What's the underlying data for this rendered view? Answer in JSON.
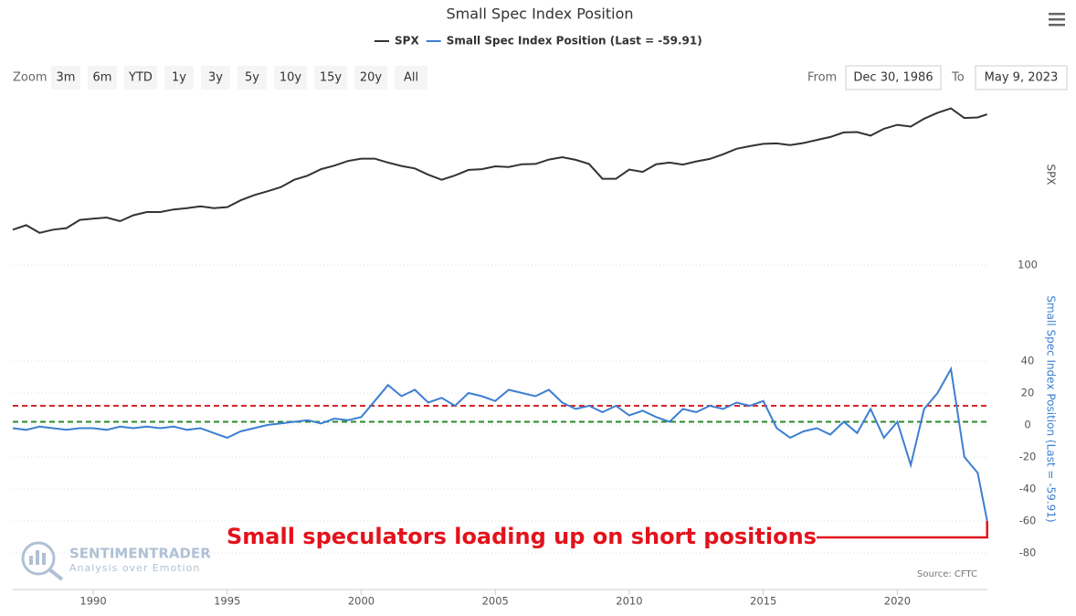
{
  "title": "Small Spec Index Position",
  "ui": {
    "zoom_label": "Zoom",
    "zoom_buttons": [
      "3m",
      "6m",
      "YTD",
      "1y",
      "3y",
      "5y",
      "10y",
      "15y",
      "20y",
      "All"
    ],
    "from_label": "From",
    "from": "Dec 30, 1986",
    "to_label": "To",
    "to": "May 9, 2023"
  },
  "branding": {
    "name": "SENTIMENTRADER",
    "tagline": "Analysis over Emotion"
  },
  "source": "Source: CFTC",
  "chart_data": [
    {
      "type": "line",
      "log_scale": true,
      "ylabel": "SPX",
      "xlim": [
        1987,
        2023.36
      ],
      "ylim": [
        180,
        5500
      ],
      "x": [
        1987,
        1987.5,
        1988,
        1988.5,
        1989,
        1989.5,
        1990,
        1990.5,
        1991,
        1991.5,
        1992,
        1992.5,
        1993,
        1993.5,
        1994,
        1994.5,
        1995,
        1995.5,
        1996,
        1996.5,
        1997,
        1997.5,
        1998,
        1998.5,
        1999,
        1999.5,
        2000,
        2000.5,
        2001,
        2001.5,
        2002,
        2002.5,
        2003,
        2003.5,
        2004,
        2004.5,
        2005,
        2005.5,
        2006,
        2006.5,
        2007,
        2007.5,
        2008,
        2008.5,
        2009,
        2009.5,
        2010,
        2010.5,
        2011,
        2011.5,
        2012,
        2012.5,
        2013,
        2013.5,
        2014,
        2014.5,
        2015,
        2015.5,
        2016,
        2016.5,
        2017,
        2017.5,
        2018,
        2018.5,
        2019,
        2019.5,
        2020,
        2020.5,
        2021,
        2021.5,
        2022,
        2022.5,
        2023,
        2023.35
      ],
      "series": [
        {
          "name": "SPX",
          "color": "#333333",
          "values": [
            270,
            300,
            250,
            270,
            280,
            340,
            350,
            360,
            330,
            380,
            410,
            410,
            435,
            450,
            470,
            450,
            460,
            540,
            610,
            670,
            740,
            880,
            970,
            1130,
            1230,
            1370,
            1450,
            1450,
            1320,
            1220,
            1150,
            990,
            880,
            975,
            1110,
            1130,
            1210,
            1190,
            1270,
            1280,
            1420,
            1500,
            1410,
            1280,
            900,
            900,
            1120,
            1060,
            1270,
            1320,
            1260,
            1360,
            1440,
            1610,
            1830,
            1950,
            2060,
            2080,
            2000,
            2100,
            2260,
            2420,
            2700,
            2720,
            2500,
            2940,
            3230,
            3100,
            3730,
            4300,
            4770,
            3800,
            3850,
            4140
          ]
        }
      ]
    },
    {
      "type": "line",
      "ylabel": "Small Spec Index Position (Last = -59.91)",
      "xlim": [
        1987,
        2023.36
      ],
      "ylim": [
        -80,
        100
      ],
      "yticks": [
        -80,
        -60,
        -40,
        -20,
        0,
        20,
        40,
        100
      ],
      "xticks": [
        1990,
        1995,
        2000,
        2005,
        2010,
        2015,
        2020
      ],
      "grid": true,
      "annotation": "Small speculators loading up on short positions",
      "annotation_color": "#e3121b",
      "reference_lines": [
        {
          "value": 12,
          "color": "#d62728"
        },
        {
          "value": 2,
          "color": "#2a8a2a"
        }
      ],
      "x": [
        1987,
        1987.5,
        1988,
        1988.5,
        1989,
        1989.5,
        1990,
        1990.5,
        1991,
        1991.5,
        1992,
        1992.5,
        1993,
        1993.5,
        1994,
        1994.5,
        1995,
        1995.5,
        1996,
        1996.5,
        1997,
        1997.5,
        1998,
        1998.5,
        1999,
        1999.5,
        2000,
        2000.5,
        2001,
        2001.5,
        2002,
        2002.5,
        2003,
        2003.5,
        2004,
        2004.5,
        2005,
        2005.5,
        2006,
        2006.5,
        2007,
        2007.5,
        2008,
        2008.5,
        2009,
        2009.5,
        2010,
        2010.5,
        2011,
        2011.5,
        2012,
        2012.5,
        2013,
        2013.5,
        2014,
        2014.5,
        2015,
        2015.5,
        2016,
        2016.5,
        2017,
        2017.5,
        2018,
        2018.5,
        2019,
        2019.5,
        2020,
        2020.5,
        2021,
        2021.5,
        2022,
        2022.5,
        2023,
        2023.35
      ],
      "series": [
        {
          "name": "Small Spec Index Position (Last = -59.91)",
          "color": "#3d7fd1",
          "values": [
            -2,
            -3,
            -1,
            -2,
            -3,
            -2,
            -2,
            -3,
            -1,
            -2,
            -1,
            -2,
            -1,
            -3,
            -2,
            -5,
            -8,
            -4,
            -2,
            0,
            1,
            2,
            3,
            1,
            4,
            3,
            5,
            15,
            25,
            18,
            22,
            14,
            17,
            12,
            20,
            18,
            15,
            22,
            20,
            18,
            22,
            14,
            10,
            12,
            8,
            12,
            6,
            9,
            5,
            2,
            10,
            8,
            12,
            10,
            14,
            12,
            15,
            -2,
            -8,
            -4,
            -2,
            -6,
            2,
            -5,
            10,
            -8,
            2,
            -25,
            10,
            20,
            35,
            -20,
            -30,
            -59.91
          ]
        }
      ]
    }
  ]
}
